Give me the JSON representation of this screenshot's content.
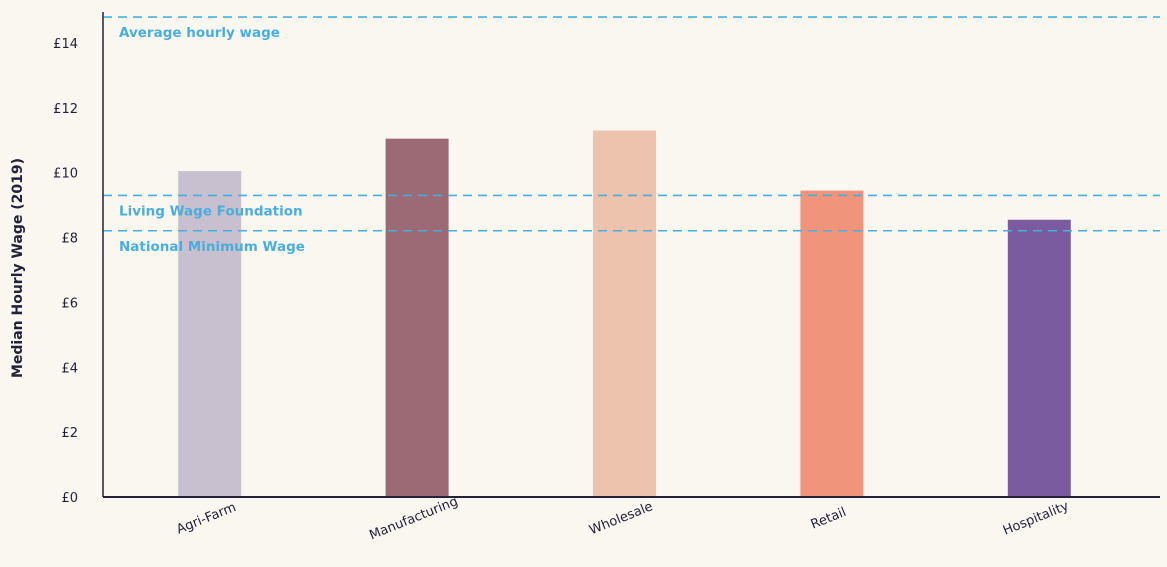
{
  "chart_data": {
    "type": "bar",
    "title": "",
    "xlabel": "",
    "ylabel": "Median Hourly Wage (2019)",
    "ylim": [
      0,
      14.8
    ],
    "yticks": [
      0,
      2,
      4,
      6,
      8,
      10,
      12,
      14
    ],
    "ytick_labels": [
      "£0",
      "£2",
      "£4",
      "£6",
      "£8",
      "£10",
      "£12",
      "£14"
    ],
    "grid": false,
    "categories": [
      "Agri-Farm",
      "Manufacturing",
      "Wholesale",
      "Retail",
      "Hospitality"
    ],
    "values": [
      10.05,
      11.05,
      11.3,
      9.45,
      8.55
    ],
    "colors": [
      "#c8bfcf",
      "#9b6a74",
      "#edc3ae",
      "#f0957c",
      "#7a5ba0"
    ],
    "reference_lines": [
      {
        "name": "Average hourly wage",
        "value": 14.8,
        "color": "#4aaedd"
      },
      {
        "name": "Living Wage Foundation",
        "value": 9.3,
        "color": "#4aaedd"
      },
      {
        "name": "National Minimum Wage",
        "value": 8.21,
        "color": "#4aaedd"
      }
    ]
  }
}
